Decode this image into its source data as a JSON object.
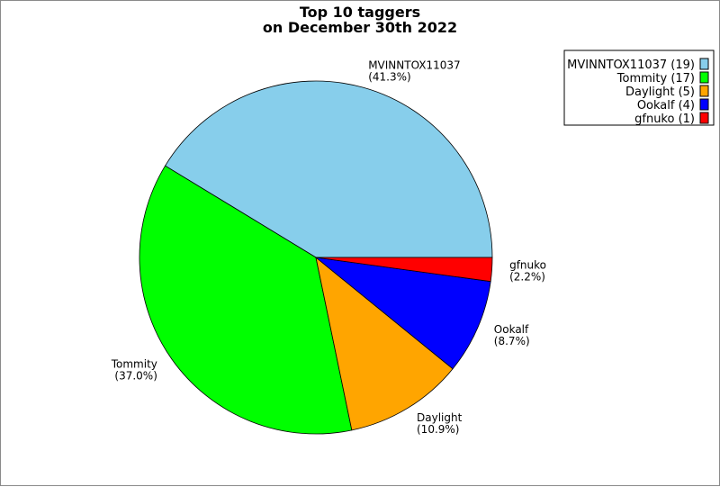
{
  "chart_data": {
    "type": "pie",
    "title": "Top 10 taggers",
    "subtitle": "on December 30th 2022",
    "start_angle_deg": 0,
    "direction": "counterclockwise",
    "legend_position": "top-right",
    "slices": [
      {
        "name": "MVINNTOX11037",
        "value": 19,
        "percent_label": "(41.3%)",
        "legend_label": "MVINNTOX11037 (19)",
        "color": "#87ceeb"
      },
      {
        "name": "Tommity",
        "value": 17,
        "percent_label": "(37.0%)",
        "legend_label": "Tommity (17)",
        "color": "#00ff00"
      },
      {
        "name": "Daylight",
        "value": 5,
        "percent_label": "(10.9%)",
        "legend_label": "Daylight (5)",
        "color": "#ffa500"
      },
      {
        "name": "Ookalf",
        "value": 4,
        "percent_label": "(8.7%)",
        "legend_label": "Ookalf (4)",
        "color": "#0000ff"
      },
      {
        "name": "gfnuko",
        "value": 1,
        "percent_label": "(2.2%)",
        "legend_label": "gfnuko (1)",
        "color": "#ff0000"
      }
    ]
  }
}
